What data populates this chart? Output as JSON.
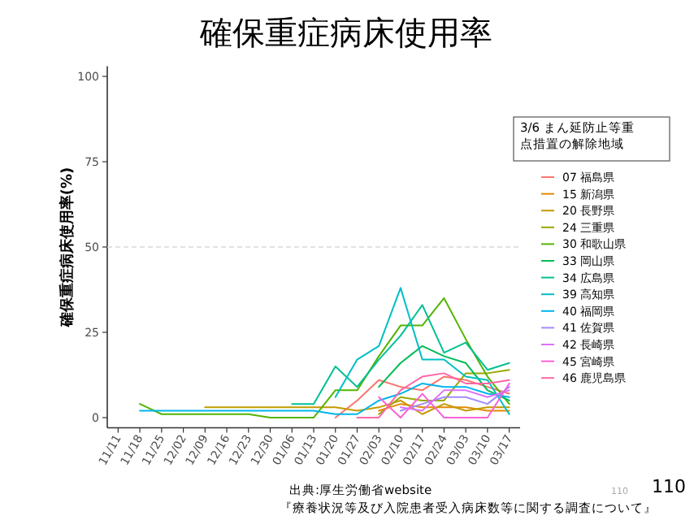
{
  "chart_data": {
    "type": "line",
    "title": "確保重症病床使用率",
    "ylabel": "確保重症病床使用率(%)",
    "legend_title": "3/6 まん延防止等重点措置の解除地域",
    "legend": "right",
    "categories": [
      "11/11",
      "11/18",
      "11/25",
      "12/02",
      "12/09",
      "12/16",
      "12/23",
      "12/30",
      "01/06",
      "01/13",
      "01/20",
      "01/27",
      "02/03",
      "02/10",
      "02/17",
      "02/24",
      "03/03",
      "03/10",
      "03/17"
    ],
    "ylim": [
      -3,
      103
    ],
    "yticks": [
      0,
      25,
      50,
      75,
      100
    ],
    "ref_lines": [
      {
        "axis": "y",
        "value": 50,
        "color": "#d9d9d9",
        "line_style": "dashed"
      }
    ],
    "series": [
      {
        "name": "07 福島県",
        "color": "#F8766D",
        "values": [
          null,
          null,
          null,
          null,
          null,
          null,
          null,
          null,
          null,
          null,
          0,
          5,
          11,
          9,
          8,
          12,
          11,
          9,
          7
        ]
      },
      {
        "name": "15 新潟県",
        "color": "#E38900",
        "values": [
          null,
          null,
          null,
          null,
          null,
          null,
          null,
          null,
          null,
          null,
          null,
          null,
          2,
          4,
          3,
          3,
          3,
          2,
          2
        ]
      },
      {
        "name": "20 長野県",
        "color": "#C49A00",
        "values": [
          null,
          null,
          null,
          null,
          3,
          3,
          3,
          3,
          3,
          3,
          3,
          2,
          3,
          5,
          1,
          4,
          2,
          3,
          3
        ]
      },
      {
        "name": "24 三重県",
        "color": "#99A800",
        "values": [
          null,
          null,
          null,
          null,
          null,
          null,
          null,
          null,
          null,
          null,
          null,
          null,
          1,
          6,
          5,
          5,
          13,
          13,
          14
        ]
      },
      {
        "name": "30 和歌山県",
        "color": "#53B400",
        "values": [
          null,
          4,
          1,
          1,
          1,
          1,
          1,
          0,
          0,
          0,
          8,
          8,
          18,
          27,
          27,
          35,
          23,
          12,
          4
        ]
      },
      {
        "name": "33 岡山県",
        "color": "#00BC56",
        "values": [
          null,
          null,
          null,
          null,
          null,
          null,
          null,
          null,
          null,
          null,
          null,
          null,
          9,
          16,
          21,
          18,
          16,
          8,
          5
        ]
      },
      {
        "name": "34 広島県",
        "color": "#00C094",
        "values": [
          null,
          null,
          null,
          null,
          null,
          null,
          null,
          null,
          4,
          4,
          15,
          9,
          17,
          24,
          33,
          19,
          22,
          14,
          16
        ]
      },
      {
        "name": "39 高知県",
        "color": "#00BFC4",
        "values": [
          null,
          null,
          null,
          null,
          null,
          null,
          null,
          null,
          null,
          null,
          6,
          17,
          21,
          38,
          17,
          17,
          12,
          11,
          1
        ]
      },
      {
        "name": "40 福岡県",
        "color": "#00B6EB",
        "values": [
          null,
          2,
          2,
          2,
          2,
          2,
          2,
          2,
          2,
          2,
          1,
          1,
          5,
          7,
          10,
          9,
          9,
          7,
          6
        ]
      },
      {
        "name": "41 佐賀県",
        "color": "#A58AFF",
        "values": [
          null,
          null,
          null,
          null,
          null,
          null,
          null,
          null,
          null,
          null,
          null,
          null,
          null,
          2,
          4,
          6,
          6,
          4,
          9
        ]
      },
      {
        "name": "42 長崎県",
        "color": "#DF70F8",
        "values": [
          null,
          null,
          null,
          null,
          null,
          null,
          null,
          null,
          null,
          null,
          null,
          null,
          null,
          3,
          2,
          8,
          8,
          6,
          8
        ]
      },
      {
        "name": "45 宮崎県",
        "color": "#FB61D7",
        "values": [
          null,
          null,
          null,
          null,
          null,
          null,
          null,
          null,
          null,
          null,
          null,
          null,
          6,
          0,
          7,
          0,
          0,
          0,
          10
        ]
      },
      {
        "name": "46 鹿児島県",
        "color": "#FF66A8",
        "values": [
          null,
          null,
          null,
          null,
          null,
          null,
          null,
          null,
          null,
          null,
          null,
          0,
          0,
          8,
          12,
          13,
          10,
          10,
          11
        ]
      }
    ],
    "annotations": [
      "出典:厚生労働省website",
      "『療養状況等及び入院患者受入病床数等に関する調査について』",
      "110",
      "110"
    ]
  }
}
